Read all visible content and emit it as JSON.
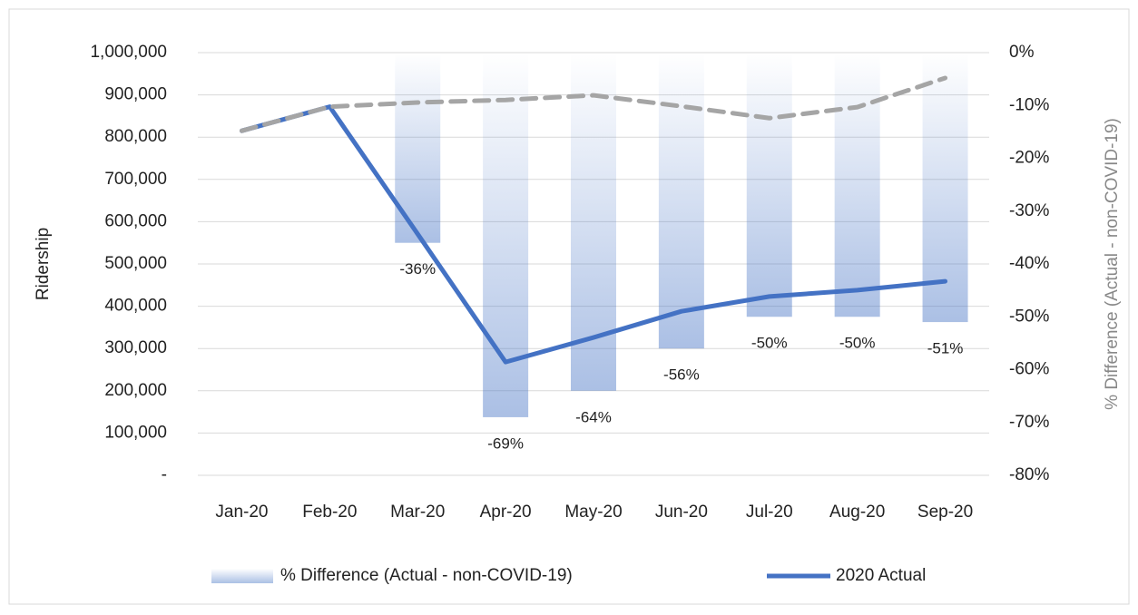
{
  "chart_data": {
    "type": "combo",
    "y_label": "Ridership",
    "y2_label": "% Difference (Actual - non-COVID-19)",
    "categories": [
      "Jan-20",
      "Feb-20",
      "Mar-20",
      "Apr-20",
      "May-20",
      "Jun-20",
      "Jul-20",
      "Aug-20",
      "Sep-20"
    ],
    "ylim": [
      0,
      1000000
    ],
    "yticks": [
      {
        "value": 0,
        "label": "-"
      },
      {
        "value": 100000,
        "label": "100,000"
      },
      {
        "value": 200000,
        "label": "200,000"
      },
      {
        "value": 300000,
        "label": "300,000"
      },
      {
        "value": 400000,
        "label": "400,000"
      },
      {
        "value": 500000,
        "label": "500,000"
      },
      {
        "value": 600000,
        "label": "600,000"
      },
      {
        "value": 700000,
        "label": "700,000"
      },
      {
        "value": 800000,
        "label": "800,000"
      },
      {
        "value": 900000,
        "label": "900,000"
      },
      {
        "value": 1000000,
        "label": "1,000,000"
      }
    ],
    "y2lim": [
      -80,
      0
    ],
    "y2ticks": [
      {
        "value": -80,
        "label": "-80%"
      },
      {
        "value": -70,
        "label": "-70%"
      },
      {
        "value": -60,
        "label": "-60%"
      },
      {
        "value": -50,
        "label": "-50%"
      },
      {
        "value": -40,
        "label": "-40%"
      },
      {
        "value": -30,
        "label": "-30%"
      },
      {
        "value": -20,
        "label": "-20%"
      },
      {
        "value": -10,
        "label": "-10%"
      },
      {
        "value": 0,
        "label": "0%"
      }
    ],
    "grid": true,
    "legend": "bottom",
    "series": [
      {
        "name": "% Difference (Actual - non-COVID-19)",
        "type": "bar",
        "axis": "y2",
        "color": "#4472c4",
        "values": [
          null,
          null,
          -36,
          -69,
          -64,
          -56,
          -50,
          -50,
          -51
        ],
        "value_labels": [
          null,
          null,
          "-36%",
          "-69%",
          "-64%",
          "-56%",
          "-50%",
          "-50%",
          "-51%"
        ]
      },
      {
        "name": "2020 Actual",
        "type": "line",
        "color": "#4472c4",
        "values": [
          815000,
          872000,
          571000,
          268000,
          326000,
          388000,
          423000,
          438000,
          459000
        ]
      },
      {
        "type": "line",
        "color": "#a5a5a5",
        "dash": true,
        "values": [
          815000,
          872000,
          882000,
          888000,
          899000,
          873000,
          845000,
          871000,
          940000
        ]
      }
    ]
  }
}
